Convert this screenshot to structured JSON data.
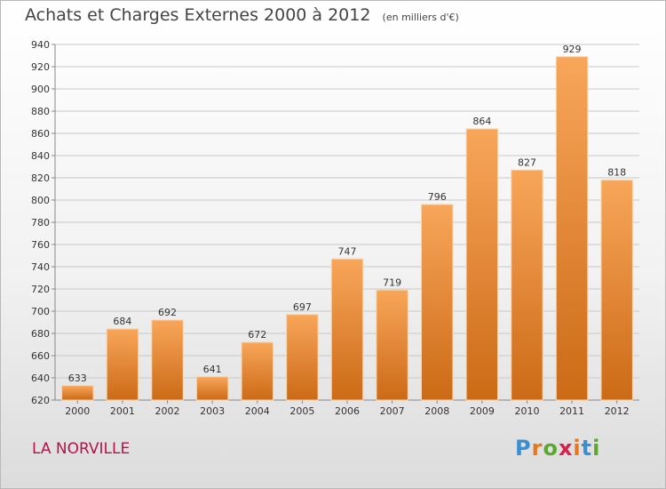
{
  "title": "Achats et Charges Externes 2000 à 2012",
  "unit_note": "(en milliers d'€)",
  "commune": "LA NORVILLE",
  "logo": {
    "text": "Proxiti",
    "letter_colors": [
      "#3a8fd0",
      "#e8761c",
      "#5ba82e",
      "#d6204c",
      "#e8761c",
      "#3a8fd0",
      "#5ba82e"
    ]
  },
  "colors": {
    "bar_top": "#f8a65a",
    "bar_bottom": "#cc6a16",
    "grid": "#c8c8c8",
    "text": "#333333"
  },
  "chart_data": {
    "type": "bar",
    "title": "Achats et Charges Externes 2000 à 2012",
    "categories": [
      "2000",
      "2001",
      "2002",
      "2003",
      "2004",
      "2005",
      "2006",
      "2007",
      "2008",
      "2009",
      "2010",
      "2011",
      "2012"
    ],
    "values": [
      633,
      684,
      692,
      641,
      672,
      697,
      747,
      719,
      796,
      864,
      827,
      929,
      818
    ],
    "ylim": [
      620,
      940
    ],
    "yticks": [
      620,
      640,
      660,
      680,
      700,
      720,
      740,
      760,
      780,
      800,
      820,
      840,
      860,
      880,
      900,
      920,
      940
    ],
    "grid": true,
    "legend": "none"
  }
}
